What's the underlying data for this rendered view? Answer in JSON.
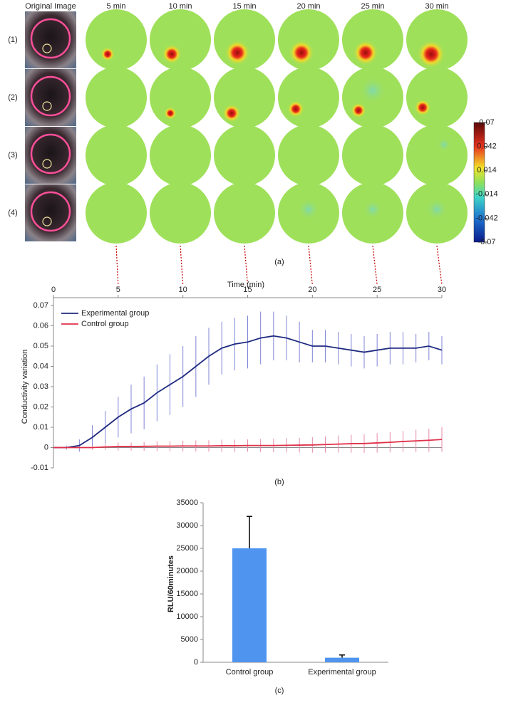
{
  "chart_data": [
    {
      "type": "image-grid",
      "column_titles": [
        "Original Image",
        "5 min",
        "10 min",
        "15 min",
        "20 min",
        "25 min",
        "30 min"
      ],
      "row_labels": [
        "(1)",
        "(2)",
        "(3)",
        "(4)"
      ],
      "colorbar_lim": [
        -0.07,
        0.07
      ],
      "colorbar_ticks": [
        0.07,
        0.042,
        0.014,
        -0.014,
        -0.042,
        -0.07
      ],
      "caption": "(a)"
    },
    {
      "type": "line",
      "x_label": "Time (min)",
      "y_label": "Conductivity variation",
      "caption": "(b)",
      "x": [
        0,
        1,
        2,
        3,
        4,
        5,
        6,
        7,
        8,
        9,
        10,
        11,
        12,
        13,
        14,
        15,
        16,
        17,
        18,
        19,
        20,
        21,
        22,
        23,
        24,
        25,
        26,
        27,
        28,
        29,
        30
      ],
      "xlim": [
        0,
        30
      ],
      "xticks": [
        0,
        5,
        10,
        15,
        20,
        25,
        30
      ],
      "ylim": [
        -0.01,
        0.07
      ],
      "yticks": [
        -0.01,
        0,
        0.01,
        0.02,
        0.03,
        0.04,
        0.05,
        0.06,
        0.07
      ],
      "legend": "upper left",
      "series": [
        {
          "name": "Experimental group",
          "color": "#1f2a80",
          "error_color": "#7f86d6",
          "values": [
            0,
            0,
            0.001,
            0.005,
            0.01,
            0.015,
            0.019,
            0.022,
            0.027,
            0.031,
            0.035,
            0.04,
            0.045,
            0.049,
            0.051,
            0.052,
            0.054,
            0.055,
            0.054,
            0.052,
            0.05,
            0.05,
            0.049,
            0.048,
            0.047,
            0.048,
            0.049,
            0.049,
            0.049,
            0.05,
            0.048
          ],
          "errors": [
            0,
            0.001,
            0.003,
            0.006,
            0.008,
            0.01,
            0.012,
            0.013,
            0.014,
            0.015,
            0.015,
            0.015,
            0.014,
            0.013,
            0.013,
            0.013,
            0.013,
            0.012,
            0.011,
            0.01,
            0.008,
            0.008,
            0.008,
            0.008,
            0.008,
            0.008,
            0.008,
            0.008,
            0.007,
            0.007,
            0.007
          ]
        },
        {
          "name": "Control group",
          "color": "#e0304a",
          "error_color": "#e58aa8",
          "values": [
            0,
            0,
            0,
            0,
            0.0003,
            0.0005,
            0.0005,
            0.0006,
            0.0007,
            0.0007,
            0.0008,
            0.0008,
            0.0008,
            0.0009,
            0.0009,
            0.001,
            0.001,
            0.001,
            0.0011,
            0.0012,
            0.0013,
            0.0015,
            0.0017,
            0.0019,
            0.002,
            0.0023,
            0.0026,
            0.003,
            0.0033,
            0.0036,
            0.004
          ],
          "errors": [
            0,
            0,
            0.0005,
            0.001,
            0.0015,
            0.002,
            0.002,
            0.0022,
            0.0024,
            0.0025,
            0.0026,
            0.0027,
            0.0028,
            0.003,
            0.003,
            0.003,
            0.0032,
            0.0033,
            0.0035,
            0.0036,
            0.0038,
            0.004,
            0.0042,
            0.0044,
            0.0046,
            0.0048,
            0.005,
            0.0052,
            0.0055,
            0.0057,
            0.006
          ]
        }
      ]
    },
    {
      "type": "bar",
      "y_label": "RLU/60minutes",
      "caption": "(c)",
      "categories": [
        "Control group",
        "Experimental group"
      ],
      "values": [
        25000,
        1000
      ],
      "errors": [
        7000,
        600
      ],
      "color": "#4f94ef",
      "ylim": [
        0,
        35000
      ],
      "yticks": [
        0,
        5000,
        10000,
        15000,
        20000,
        25000,
        30000,
        35000
      ]
    }
  ]
}
